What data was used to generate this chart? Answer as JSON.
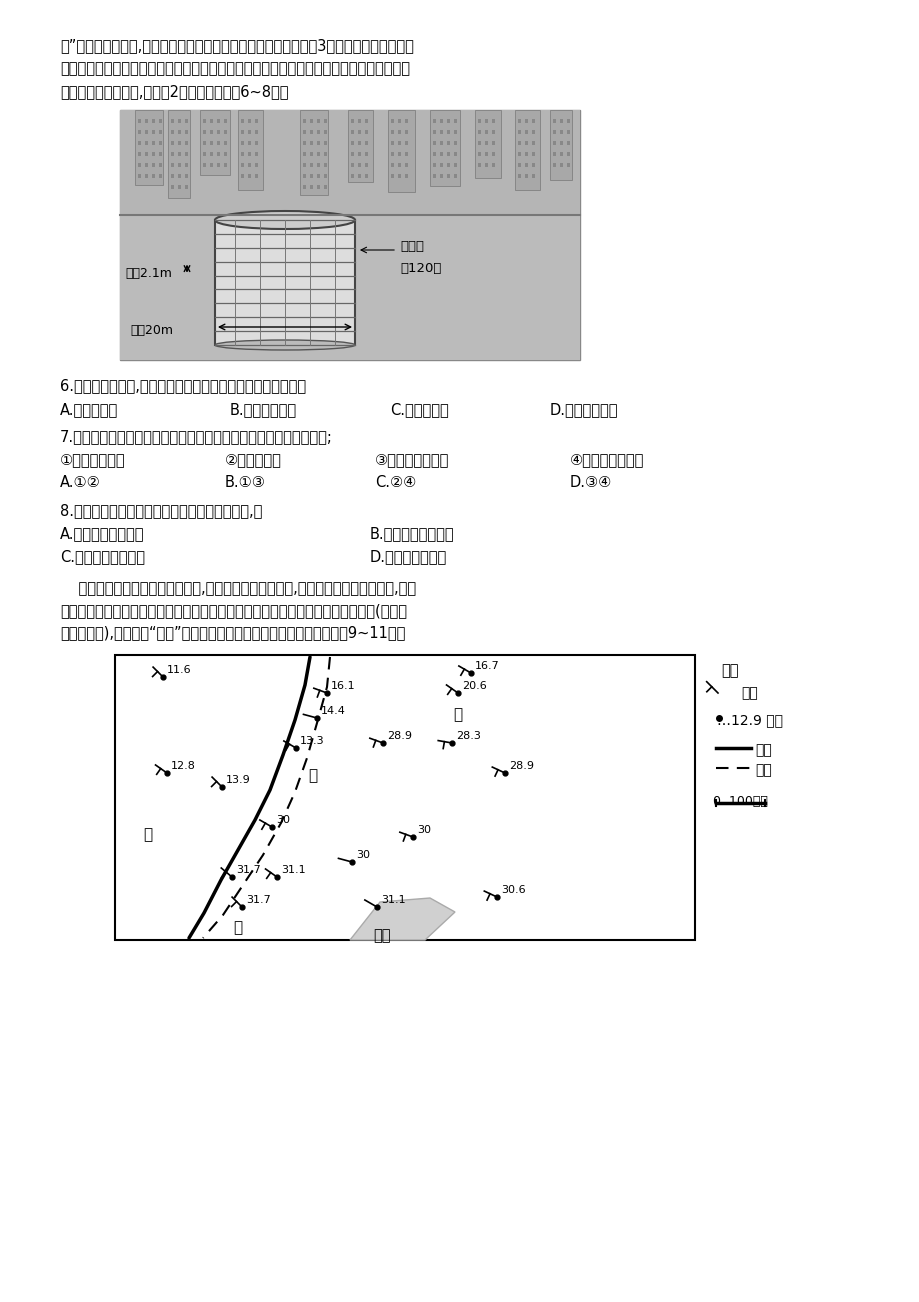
{
  "bg_color": "#ffffff",
  "text_color": "#000000",
  "page_width": 9.2,
  "page_height": 13.02,
  "font_size_body": 10.5,
  "para1": "病”。面对这一问题,沉井式地下圆筒形立体停车库应运而生，原本3个车位的面积可以停放",
  "para2": "上百辆汽车。这类停车场适合建在老旧小区的空隙绿地、中庭空地及城市边角绿地，采用智",
  "para3": "能停车、存车或取车,时间剠2分钟。据此完戉6~8题。",
  "img_label1": "层高2.1m",
  "img_label2": "直剤20m",
  "img_label3": "停车位",
  "img_label4": "八120个",
  "q6": "6.相比传统停车场,沉井式地下圆筒形立体停车库的最大优势是",
  "q6a": "A.存取车方便",
  "q6b": "B.节省城市用地",
  "q6c": "C.建设成本低",
  "q6d": "D.增加停车车位",
  "q7": "7.沉井式地下圆筒形立体停车库在施工过程中需要考虑的主要问题是;",
  "q7sub1": "①施工场地受限",
  "q7sub2": "②周边人流量",
  "q7sub3": "③地下管线的分布",
  "q7sub4": "④保护生物多样性",
  "q7a": "A.①②",
  "q7b": "B.①③",
  "q7c": "C.②④",
  "q7d": "D.③④",
  "q8": "8.城市中建设大量沉井式地下圆筒形立体停车库,可",
  "q8a": "A.改善城市市容市貌",
  "q8b": "B.促进公共交通发展",
  "q8c": "C.解决交通拥堵难题",
  "q8d": "D.加速住宅区分化",
  "para4": "    在温度等其它因子相近的情况下,湿空气比干空气密度小,当干空气向湿空气移动时,会将",
  "para5": "湿空气强迫抬升，形成类似冷锋的天气过程。这类锋线过境会出现湿度的显著下降(温度不",
  "para6": "会明显下降),因此称为“干线”。下图示意某区域近地面天气图。据此完戉9~11题。",
  "legend_title": "图例",
  "legend_wind": "风矢",
  "legend_temp": "…12.9 温度",
  "legend_line1": "锋线",
  "legend_line2": "干线",
  "legend_scale": "0  100千米"
}
